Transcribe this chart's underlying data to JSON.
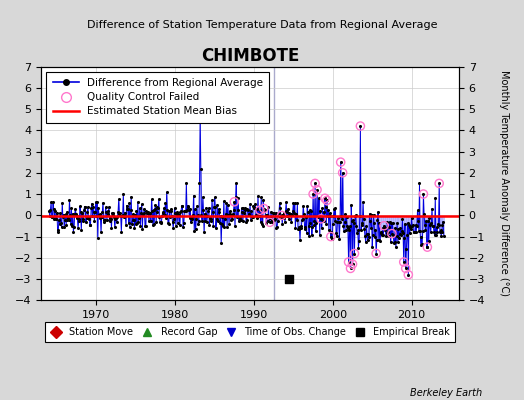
{
  "title": "CHIMBOTE",
  "subtitle": "Difference of Station Temperature Data from Regional Average",
  "ylabel_right": "Monthly Temperature Anomaly Difference (°C)",
  "xlim": [
    1963,
    2016
  ],
  "ylim": [
    -4,
    7
  ],
  "yticks": [
    -4,
    -3,
    -2,
    -1,
    0,
    1,
    2,
    3,
    4,
    5,
    6,
    7
  ],
  "xticks": [
    1970,
    1980,
    1990,
    2000,
    2010
  ],
  "bias_line_y": -0.05,
  "figure_bg": "#d8d8d8",
  "plot_bg": "#ffffff",
  "legend_items": [
    "Difference from Regional Average",
    "Quality Control Failed",
    "Estimated Station Mean Bias"
  ],
  "bottom_legend": [
    {
      "label": "Station Move",
      "color": "#cc0000",
      "marker": "D"
    },
    {
      "label": "Record Gap",
      "color": "#228B22",
      "marker": "^"
    },
    {
      "label": "Time of Obs. Change",
      "color": "#0000cc",
      "marker": "v"
    },
    {
      "label": "Empirical Break",
      "color": "#000000",
      "marker": "s"
    }
  ],
  "empirical_break_x": 1994.5,
  "empirical_break_y": -3.0,
  "record_gap_vline_x": 1992.5,
  "berkeley_earth_text": "Berkeley Earth",
  "data_seed": 77,
  "line_color": "#0000dd",
  "stem_color": "#aaaaff",
  "qc_color": "#ff77cc",
  "dot_color": "#000000"
}
